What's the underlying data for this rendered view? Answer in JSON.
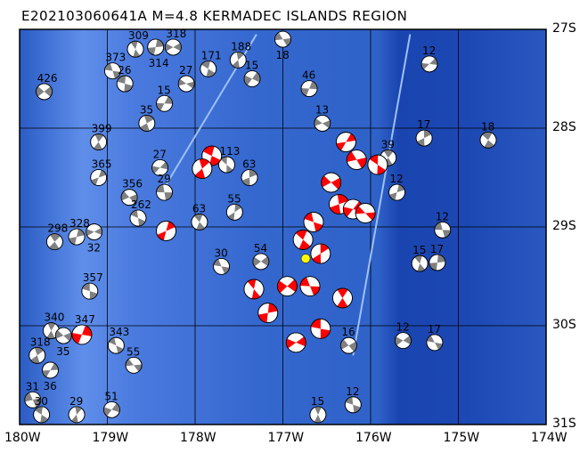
{
  "title": "E202103060641A M=4.8 KERMADEC ISLANDS REGION",
  "map": {
    "lon_range": [
      -180,
      -174
    ],
    "lat_range": [
      -31,
      -27
    ],
    "lon_ticks": [
      "180W",
      "179W",
      "178W",
      "177W",
      "176W",
      "175W",
      "174W"
    ],
    "lat_ticks": [
      "27S",
      "28S",
      "29S",
      "30S",
      "31S"
    ],
    "grid": true,
    "colors": {
      "ocean": "#2f62c8",
      "shallow": "#6a98ee",
      "deep": "#1a45b0",
      "compression": "#ff0000",
      "mechanism_fill": "#808080",
      "event_marker": "#ffff00"
    },
    "target_event": {
      "lon": -176.74,
      "lat": -29.32
    },
    "events": [
      {
        "lon": -179.72,
        "lat": -27.63,
        "label": "426",
        "c": "g"
      },
      {
        "lon": -178.94,
        "lat": -27.42,
        "label": "373",
        "c": "g"
      },
      {
        "lon": -178.68,
        "lat": -27.2,
        "label": "309",
        "c": "g"
      },
      {
        "lon": -178.45,
        "lat": -27.18,
        "label": "314",
        "c": "g"
      },
      {
        "lon": -178.25,
        "lat": -27.18,
        "label": "318",
        "c": "g"
      },
      {
        "lon": -178.8,
        "lat": -27.55,
        "label": "26",
        "c": "g"
      },
      {
        "lon": -179.1,
        "lat": -28.14,
        "label": "399",
        "c": "g"
      },
      {
        "lon": -179.1,
        "lat": -28.5,
        "label": "365",
        "c": "g"
      },
      {
        "lon": -178.75,
        "lat": -28.7,
        "label": "356",
        "c": "g"
      },
      {
        "lon": -178.65,
        "lat": -28.91,
        "label": "262",
        "c": "g"
      },
      {
        "lon": -178.55,
        "lat": -27.95,
        "label": "35",
        "c": "g"
      },
      {
        "lon": -178.35,
        "lat": -27.75,
        "label": "15",
        "c": "g"
      },
      {
        "lon": -178.1,
        "lat": -27.55,
        "label": "27",
        "c": "g"
      },
      {
        "lon": -177.85,
        "lat": -27.4,
        "label": "171",
        "c": "g"
      },
      {
        "lon": -177.51,
        "lat": -27.31,
        "label": "188",
        "c": "g"
      },
      {
        "lon": -177.35,
        "lat": -27.5,
        "label": "15",
        "c": "g"
      },
      {
        "lon": -177.0,
        "lat": -27.1,
        "label": "18",
        "c": "g"
      },
      {
        "lon": -177.64,
        "lat": -28.37,
        "label": "113",
        "c": "g"
      },
      {
        "lon": -177.38,
        "lat": -28.5,
        "label": "63",
        "c": "g"
      },
      {
        "lon": -178.4,
        "lat": -28.4,
        "label": "27",
        "c": "g"
      },
      {
        "lon": -178.35,
        "lat": -28.65,
        "label": "29",
        "c": "g"
      },
      {
        "lon": -177.95,
        "lat": -28.95,
        "label": "63",
        "c": "g"
      },
      {
        "lon": -177.55,
        "lat": -28.85,
        "label": "55",
        "c": "g"
      },
      {
        "lon": -177.25,
        "lat": -29.35,
        "label": "54",
        "c": "g"
      },
      {
        "lon": -177.7,
        "lat": -29.4,
        "label": "30",
        "c": "g"
      },
      {
        "lon": -179.6,
        "lat": -29.15,
        "label": "298",
        "c": "g"
      },
      {
        "lon": -179.35,
        "lat": -29.1,
        "label": "328",
        "c": "g"
      },
      {
        "lon": -179.15,
        "lat": -29.05,
        "label": "32",
        "c": "g"
      },
      {
        "lon": -179.2,
        "lat": -29.65,
        "label": "357",
        "c": "g"
      },
      {
        "lon": -179.64,
        "lat": -30.05,
        "label": "340",
        "c": "g"
      },
      {
        "lon": -179.29,
        "lat": -30.09,
        "label": "347",
        "c": "r"
      },
      {
        "lon": -179.5,
        "lat": -30.1,
        "label": "35",
        "c": "g"
      },
      {
        "lon": -178.9,
        "lat": -30.2,
        "label": "343",
        "c": "g"
      },
      {
        "lon": -179.8,
        "lat": -30.3,
        "label": "318",
        "c": "g"
      },
      {
        "lon": -179.65,
        "lat": -30.45,
        "label": "36",
        "c": "g"
      },
      {
        "lon": -179.85,
        "lat": -30.75,
        "label": "31",
        "c": "g"
      },
      {
        "lon": -179.75,
        "lat": -30.9,
        "label": "30",
        "c": "g"
      },
      {
        "lon": -179.35,
        "lat": -30.9,
        "label": "29",
        "c": "g"
      },
      {
        "lon": -178.95,
        "lat": -30.85,
        "label": "51",
        "c": "g"
      },
      {
        "lon": -178.7,
        "lat": -30.4,
        "label": "55",
        "c": "g"
      },
      {
        "lon": -174.66,
        "lat": -28.12,
        "label": "18",
        "c": "g"
      },
      {
        "lon": -175.39,
        "lat": -28.1,
        "label": "17",
        "c": "g"
      },
      {
        "lon": -175.33,
        "lat": -27.35,
        "label": "12",
        "c": "g"
      },
      {
        "lon": -175.18,
        "lat": -29.03,
        "label": "12",
        "c": "g"
      },
      {
        "lon": -175.44,
        "lat": -29.37,
        "label": "15",
        "c": "g"
      },
      {
        "lon": -175.24,
        "lat": -29.36,
        "label": "17",
        "c": "g"
      },
      {
        "lon": -175.63,
        "lat": -30.15,
        "label": "12",
        "c": "g"
      },
      {
        "lon": -175.27,
        "lat": -30.17,
        "label": "17",
        "c": "g"
      },
      {
        "lon": -175.8,
        "lat": -28.3,
        "label": "39",
        "c": "g"
      },
      {
        "lon": -175.7,
        "lat": -28.65,
        "label": "12",
        "c": "g"
      },
      {
        "lon": -176.25,
        "lat": -30.2,
        "label": "16",
        "c": "g"
      },
      {
        "lon": -176.2,
        "lat": -30.8,
        "label": "12",
        "c": "g"
      },
      {
        "lon": -176.6,
        "lat": -30.9,
        "label": "15",
        "c": "g"
      },
      {
        "lon": -176.7,
        "lat": -27.6,
        "label": "46",
        "c": "g"
      },
      {
        "lon": -176.55,
        "lat": -27.95,
        "label": "13",
        "c": "g"
      },
      {
        "lon": -177.81,
        "lat": -28.28,
        "label": "",
        "c": "r"
      },
      {
        "lon": -177.92,
        "lat": -28.41,
        "label": "",
        "c": "r"
      },
      {
        "lon": -176.28,
        "lat": -28.14,
        "label": "",
        "c": "r"
      },
      {
        "lon": -176.16,
        "lat": -28.32,
        "label": "",
        "c": "r"
      },
      {
        "lon": -175.92,
        "lat": -28.37,
        "label": "",
        "c": "r"
      },
      {
        "lon": -176.36,
        "lat": -28.77,
        "label": "",
        "c": "r"
      },
      {
        "lon": -176.2,
        "lat": -28.82,
        "label": "",
        "c": "r"
      },
      {
        "lon": -176.06,
        "lat": -28.86,
        "label": "",
        "c": "r"
      },
      {
        "lon": -176.77,
        "lat": -29.13,
        "label": "",
        "c": "r"
      },
      {
        "lon": -176.57,
        "lat": -29.27,
        "label": "",
        "c": "r"
      },
      {
        "lon": -176.95,
        "lat": -29.6,
        "label": "",
        "c": "r"
      },
      {
        "lon": -176.69,
        "lat": -29.6,
        "label": "",
        "c": "r"
      },
      {
        "lon": -177.33,
        "lat": -29.63,
        "label": "",
        "c": "r"
      },
      {
        "lon": -177.17,
        "lat": -29.87,
        "label": "",
        "c": "r"
      },
      {
        "lon": -176.85,
        "lat": -30.17,
        "label": "",
        "c": "r"
      },
      {
        "lon": -176.57,
        "lat": -30.03,
        "label": "",
        "c": "r"
      },
      {
        "lon": -176.32,
        "lat": -29.72,
        "label": "",
        "c": "r"
      },
      {
        "lon": -178.33,
        "lat": -29.04,
        "label": "",
        "c": "r"
      },
      {
        "lon": -176.45,
        "lat": -28.55,
        "label": "",
        "c": "r"
      },
      {
        "lon": -176.65,
        "lat": -28.95,
        "label": "",
        "c": "r"
      }
    ]
  }
}
